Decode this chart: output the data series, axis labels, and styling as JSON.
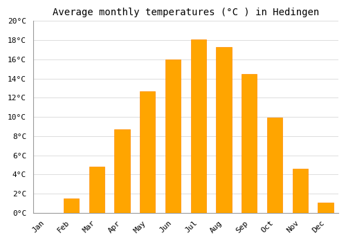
{
  "months": [
    "Jan",
    "Feb",
    "Mar",
    "Apr",
    "May",
    "Jun",
    "Jul",
    "Aug",
    "Sep",
    "Oct",
    "Nov",
    "Dec"
  ],
  "values": [
    0.0,
    1.5,
    4.8,
    8.7,
    12.7,
    16.0,
    18.1,
    17.3,
    14.5,
    9.9,
    4.6,
    1.1
  ],
  "bar_color": "#FFA500",
  "bar_edge_color": "#FF8C00",
  "background_color": "#FFFFFF",
  "plot_bg_color": "#FFFFFF",
  "grid_color": "#DDDDDD",
  "title": "Average monthly temperatures (°C ) in Hedingen",
  "title_fontsize": 10,
  "tick_fontsize": 8,
  "ylim": [
    0,
    20
  ],
  "ytick_step": 2,
  "bar_width": 0.6
}
